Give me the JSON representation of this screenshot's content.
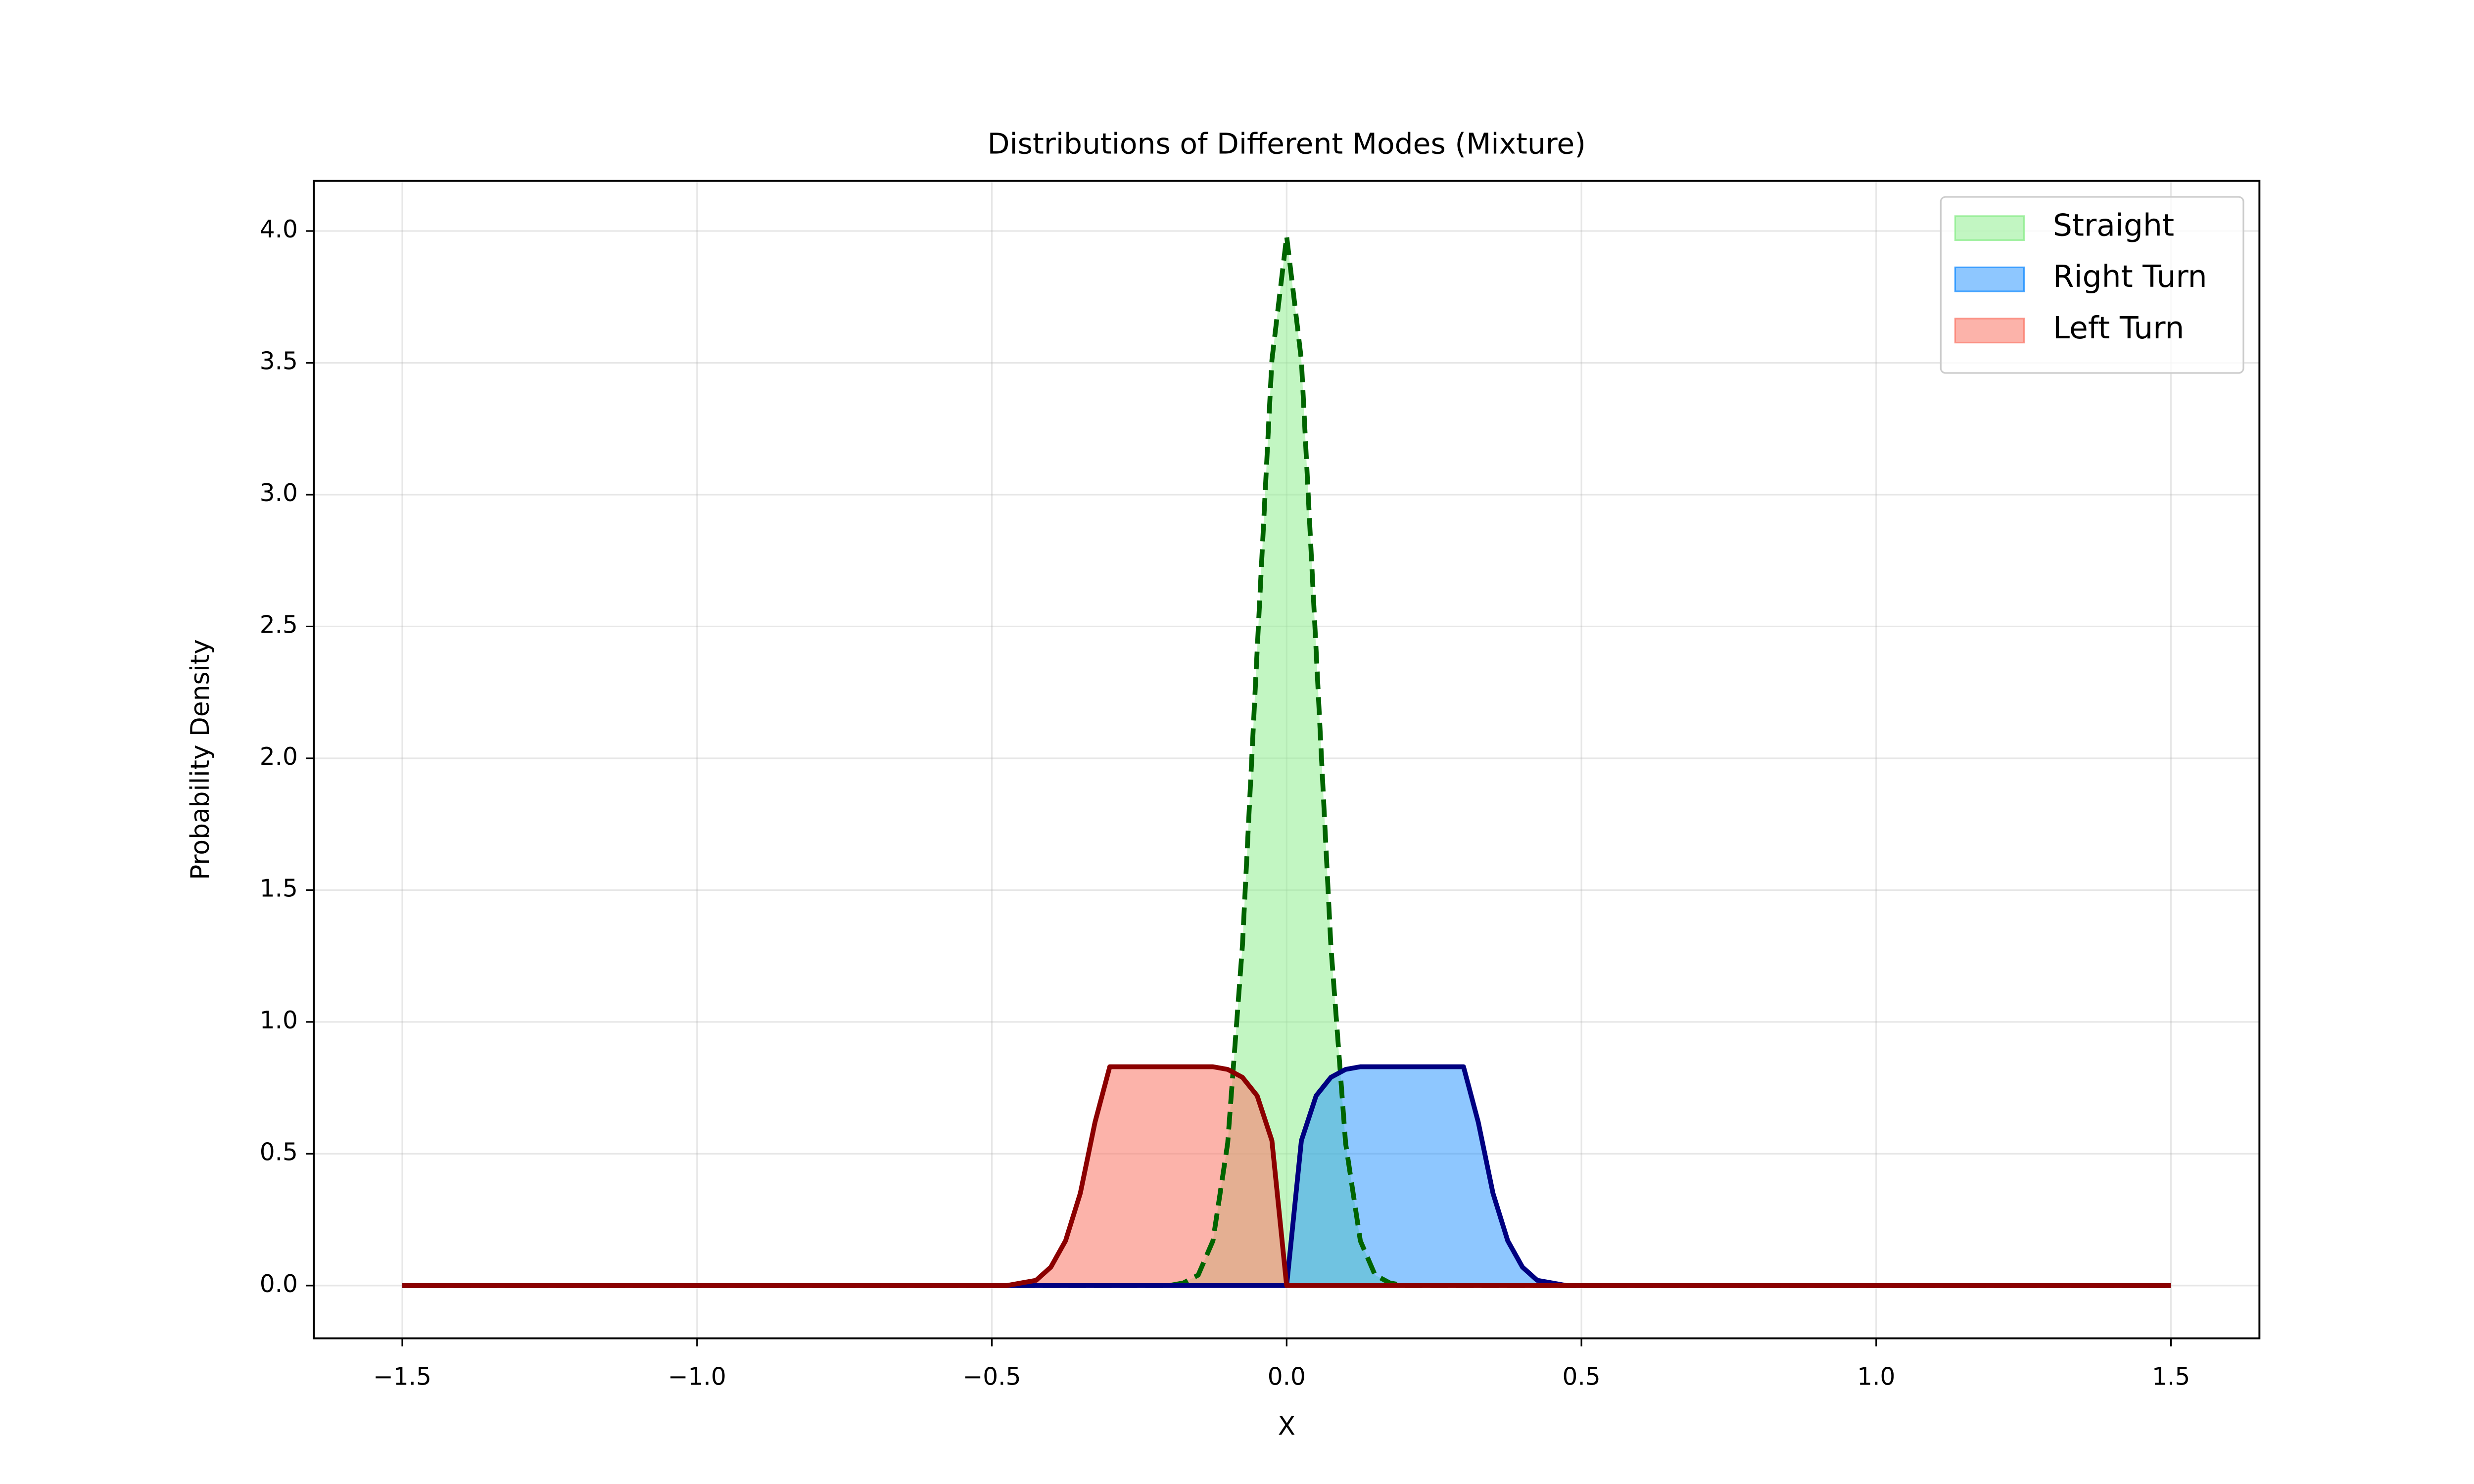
{
  "chart_data": {
    "type": "area",
    "title": "Distributions of Different Modes (Mixture)",
    "x_label": "X",
    "y_label": "Probability Density",
    "x": [
      -1.5,
      -1.0,
      -0.5,
      -0.475,
      -0.45,
      -0.425,
      -0.4,
      -0.375,
      -0.35,
      -0.325,
      -0.3,
      -0.275,
      -0.25,
      -0.225,
      -0.2,
      -0.175,
      -0.15,
      -0.125,
      -0.1,
      -0.075,
      -0.05,
      -0.025,
      0,
      0.025,
      0.05,
      0.075,
      0.1,
      0.125,
      0.15,
      0.175,
      0.2,
      0.225,
      0.25,
      0.275,
      0.3,
      0.325,
      0.35,
      0.375,
      0.4,
      0.425,
      0.45,
      0.475,
      0.5,
      1.0,
      1.5
    ],
    "series": [
      {
        "name": "Straight",
        "color": "#90ee90",
        "line_color": "#006400",
        "line_style": "dashed",
        "values": [
          0,
          0,
          0,
          0,
          0,
          0,
          0,
          0,
          0,
          0,
          0,
          0,
          0,
          0,
          0,
          0.01,
          0.04,
          0.17,
          0.54,
          1.29,
          2.41,
          3.51,
          3.98,
          3.51,
          2.41,
          1.29,
          0.54,
          0.17,
          0.04,
          0.01,
          0,
          0,
          0,
          0,
          0,
          0,
          0,
          0,
          0,
          0,
          0,
          0,
          0,
          0,
          0
        ]
      },
      {
        "name": "Right Turn",
        "color": "#1e90ff",
        "line_color": "#000080",
        "line_style": "solid",
        "values": [
          0,
          0,
          0,
          0,
          0,
          0,
          0,
          0,
          0,
          0,
          0,
          0,
          0,
          0,
          0,
          0,
          0,
          0,
          0,
          0,
          0,
          0,
          0,
          0.55,
          0.72,
          0.79,
          0.82,
          0.83,
          0.83,
          0.83,
          0.83,
          0.83,
          0.83,
          0.83,
          0.83,
          0.62,
          0.35,
          0.17,
          0.07,
          0.02,
          0.01,
          0,
          0,
          0,
          0
        ]
      },
      {
        "name": "Left Turn",
        "color": "#fa8072",
        "line_color": "#8b0000",
        "line_style": "solid",
        "values": [
          0,
          0,
          0,
          0,
          0.01,
          0.02,
          0.07,
          0.17,
          0.35,
          0.62,
          0.83,
          0.83,
          0.83,
          0.83,
          0.83,
          0.83,
          0.83,
          0.83,
          0.82,
          0.79,
          0.72,
          0.55,
          0,
          0,
          0,
          0,
          0,
          0,
          0,
          0,
          0,
          0,
          0,
          0,
          0,
          0,
          0,
          0,
          0,
          0,
          0,
          0,
          0,
          0,
          0
        ]
      }
    ],
    "xlim": [
      -1.65,
      1.65
    ],
    "ylim": [
      -0.2,
      4.19
    ],
    "xticks": [
      {
        "value": -1.5,
        "label": "−1.5"
      },
      {
        "value": -1.0,
        "label": "−1.0"
      },
      {
        "value": -0.5,
        "label": "−0.5"
      },
      {
        "value": 0,
        "label": "0.0"
      },
      0.5,
      {
        "value": 1.0,
        "label": "1.0"
      },
      1.5
    ],
    "yticks": [
      {
        "value": 0,
        "label": "0.0"
      },
      0.5,
      {
        "value": 1.0,
        "label": "1.0"
      },
      1.5,
      {
        "value": 2.0,
        "label": "2.0"
      },
      2.5,
      {
        "value": 3.0,
        "label": "3.0"
      },
      3.5,
      {
        "value": 4.0,
        "label": "4.0"
      }
    ],
    "grid": true,
    "legend_loc": "upper right"
  }
}
